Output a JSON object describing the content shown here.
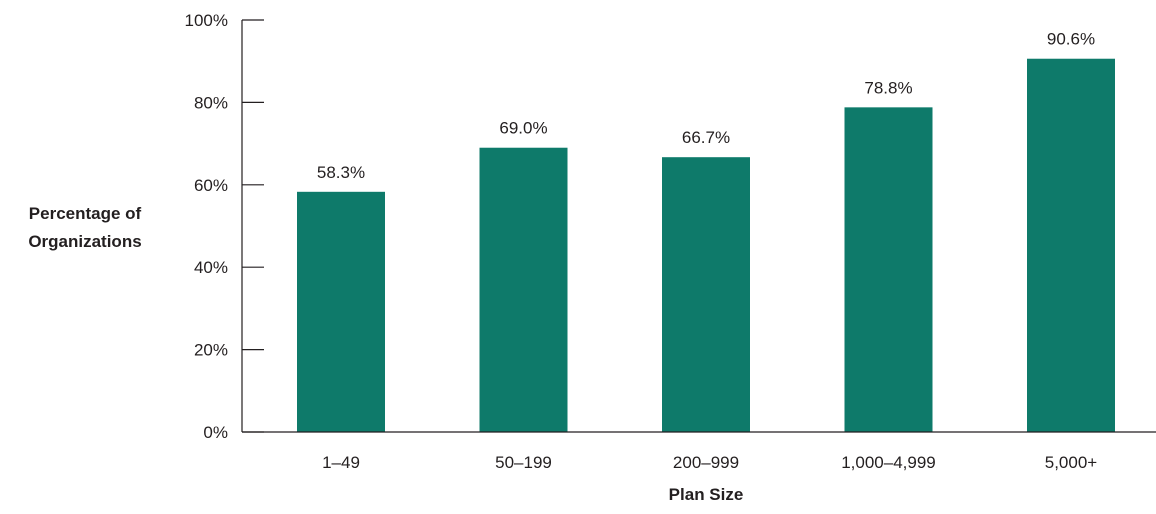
{
  "chart_data": {
    "type": "bar",
    "categories": [
      "1–49",
      "50–199",
      "200–999",
      "1,000–4,999",
      "5,000+"
    ],
    "values": [
      58.3,
      69.0,
      66.7,
      78.8,
      90.6
    ],
    "data_labels": [
      "58.3%",
      "69.0%",
      "66.7%",
      "78.8%",
      "90.6%"
    ],
    "xlabel": "Plan Size",
    "ylabel_lines": [
      "Percentage of",
      "Organizations"
    ],
    "ylim": [
      0,
      100
    ],
    "yticks": [
      0,
      20,
      40,
      60,
      80,
      100
    ],
    "ytick_labels": [
      "0%",
      "20%",
      "40%",
      "60%",
      "80%",
      "100%"
    ],
    "bar_color": "#0e7a6a",
    "axis_color": "#231f20",
    "grid": false
  }
}
